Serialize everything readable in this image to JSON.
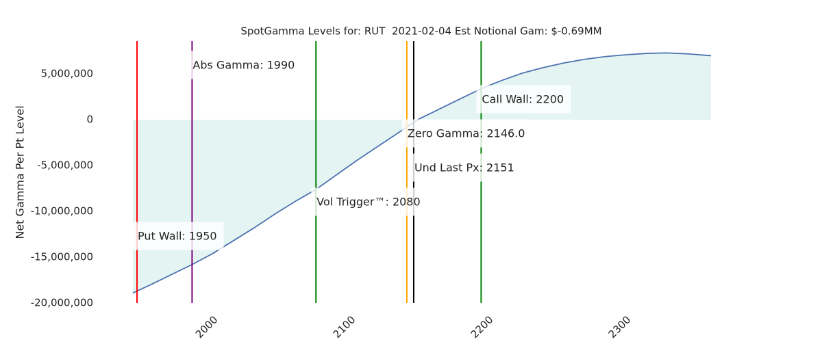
{
  "chart_data": {
    "type": "line",
    "title": "SpotGamma Levels for: RUT  2021-02-04 Est Notional Gam: $-0.69MM",
    "y_label": "Net Gamma Per Pt Level",
    "color": "#4c72b0",
    "fill_color": "#e4f4f2",
    "x": [
      1947,
      1960,
      1975,
      1990,
      2005,
      2020,
      2035,
      2050,
      2065,
      2080,
      2095,
      2110,
      2125,
      2140,
      2155,
      2170,
      2185,
      2200,
      2215,
      2230,
      2245,
      2260,
      2275,
      2290,
      2305,
      2320,
      2335,
      2350,
      2367
    ],
    "values": [
      -18900000,
      -18000000,
      -16900000,
      -15800000,
      -14600000,
      -13200000,
      -11800000,
      -10300000,
      -8900000,
      -7600000,
      -6000000,
      -4400000,
      -2900000,
      -1400000,
      100000,
      1200000,
      2300000,
      3400000,
      4300000,
      5100000,
      5700000,
      6200000,
      6600000,
      6900000,
      7100000,
      7250000,
      7300000,
      7200000,
      7000000
    ],
    "xlim": [
      1946.5,
      2367
    ],
    "ylim": [
      -20000000,
      8600000
    ],
    "xticks": [
      2000,
      2100,
      2200,
      2300
    ],
    "yticks": [
      {
        "value": 5000000,
        "label": "5,000,000"
      },
      0,
      {
        "value": -5000000,
        "label": "-5,000,000"
      },
      {
        "value": -10000000,
        "label": "-10,000,000"
      },
      {
        "value": -15000000,
        "label": "-15,000,000"
      },
      {
        "value": -20000000,
        "label": "-20,000,000"
      }
    ],
    "levels": [
      {
        "label": "Put Wall: 1950",
        "value": 1950,
        "color": "#ff0000"
      },
      {
        "label": "Abs Gamma: 1990",
        "value": 1990,
        "color": "#800080"
      },
      {
        "label": "Vol Trigger™: 2080",
        "value": 2080,
        "color": "#008000",
        "text_color": "#0000ff"
      },
      {
        "label": "Zero Gamma: 2146.0",
        "value": 2146,
        "color": "#ffa500"
      },
      {
        "label": "Und Last Px: 2151",
        "value": 2151,
        "color": "#000000"
      },
      {
        "label": "Call Wall: 2200",
        "value": 2200,
        "color": "#008000"
      }
    ]
  }
}
